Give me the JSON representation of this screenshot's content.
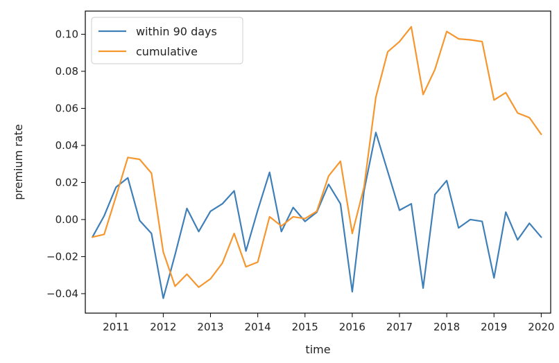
{
  "chart_data": {
    "type": "line",
    "xlabel": "time",
    "ylabel": "premium rate",
    "xlim": [
      2010.35,
      2020.2
    ],
    "ylim": [
      -0.0505,
      0.1125
    ],
    "x_ticks": [
      2011,
      2012,
      2013,
      2014,
      2015,
      2016,
      2017,
      2018,
      2019,
      2020
    ],
    "x_tick_labels": [
      "2011",
      "2012",
      "2013",
      "2014",
      "2015",
      "2016",
      "2017",
      "2018",
      "2019",
      "2020"
    ],
    "y_ticks": [
      -0.04,
      -0.02,
      0.0,
      0.02,
      0.04,
      0.06,
      0.08,
      0.1
    ],
    "y_tick_labels": [
      "−0.04",
      "−0.02",
      "0.00",
      "0.02",
      "0.04",
      "0.06",
      "0.08",
      "0.10"
    ],
    "grid": false,
    "legend_position": "upper left",
    "x": [
      2010.5,
      2010.75,
      2011.0,
      2011.25,
      2011.5,
      2011.75,
      2012.0,
      2012.25,
      2012.5,
      2012.75,
      2013.0,
      2013.25,
      2013.5,
      2013.75,
      2014.0,
      2014.25,
      2014.5,
      2014.75,
      2015.0,
      2015.25,
      2015.5,
      2015.75,
      2016.0,
      2016.25,
      2016.5,
      2016.75,
      2017.0,
      2017.25,
      2017.5,
      2017.75,
      2018.0,
      2018.25,
      2018.5,
      2018.75,
      2019.0,
      2019.25,
      2019.5,
      2019.75,
      2020.0
    ],
    "series": [
      {
        "name": "within 90 days",
        "color": "#3f7fb8",
        "values": [
          -0.0095,
          0.002,
          0.0175,
          0.0225,
          -0.0005,
          -0.0075,
          -0.0425,
          -0.019,
          0.006,
          -0.0065,
          0.0045,
          0.0085,
          0.0155,
          -0.017,
          0.005,
          0.0255,
          -0.0065,
          0.0065,
          -0.001,
          0.004,
          0.019,
          0.0085,
          -0.039,
          0.0155,
          0.047,
          0.026,
          0.005,
          0.0085,
          -0.037,
          0.0135,
          0.021,
          -0.0045,
          0.0,
          -0.001,
          -0.0315,
          0.004,
          -0.011,
          -0.002,
          -0.0095
        ]
      },
      {
        "name": "cumulative",
        "color": "#f5962e",
        "values": [
          -0.0095,
          -0.008,
          0.0125,
          0.0335,
          0.0325,
          0.025,
          -0.0175,
          -0.036,
          -0.0295,
          -0.0365,
          -0.032,
          -0.0235,
          -0.0075,
          -0.0255,
          -0.023,
          0.0015,
          -0.0035,
          0.0015,
          0.0005,
          0.0045,
          0.0235,
          0.0315,
          -0.0075,
          0.0175,
          0.066,
          0.0905,
          0.096,
          0.104,
          0.0675,
          0.081,
          0.1015,
          0.0975,
          0.097,
          0.096,
          0.0645,
          0.0685,
          0.0575,
          0.055,
          0.046
        ]
      }
    ]
  }
}
